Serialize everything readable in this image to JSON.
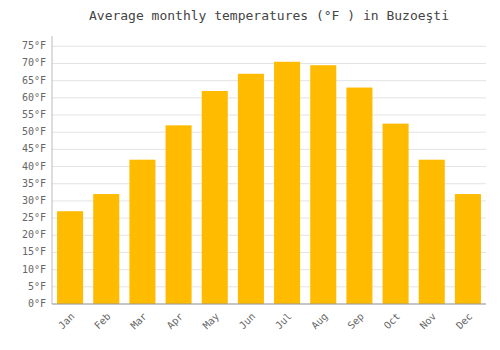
{
  "chart_data": {
    "type": "bar",
    "title": "Average monthly temperatures (°F ) in Buzoeşti",
    "categories": [
      "Jan",
      "Feb",
      "Mar",
      "Apr",
      "May",
      "Jun",
      "Jul",
      "Aug",
      "Sep",
      "Oct",
      "Nov",
      "Dec"
    ],
    "values": [
      27,
      32,
      42,
      52,
      62,
      67,
      70.5,
      69.5,
      63,
      52.5,
      42,
      32
    ],
    "color": "#FFBB00",
    "ylim": [
      0,
      78
    ],
    "yticks": [
      {
        "value": 0,
        "label": "0°F"
      },
      {
        "value": 5,
        "label": "5°F"
      },
      {
        "value": 10,
        "label": "10°F"
      },
      {
        "value": 15,
        "label": "15°F"
      },
      {
        "value": 20,
        "label": "20°F"
      },
      {
        "value": 25,
        "label": "25°F"
      },
      {
        "value": 30,
        "label": "30°F"
      },
      {
        "value": 35,
        "label": "35°F"
      },
      {
        "value": 40,
        "label": "40°F"
      },
      {
        "value": 45,
        "label": "45°F"
      },
      {
        "value": 50,
        "label": "50°F"
      },
      {
        "value": 55,
        "label": "55°F"
      },
      {
        "value": 60,
        "label": "60°F"
      },
      {
        "value": 65,
        "label": "65°F"
      },
      {
        "value": 70,
        "label": "70°F"
      },
      {
        "value": 75,
        "label": "75°F"
      }
    ],
    "grid": true
  }
}
